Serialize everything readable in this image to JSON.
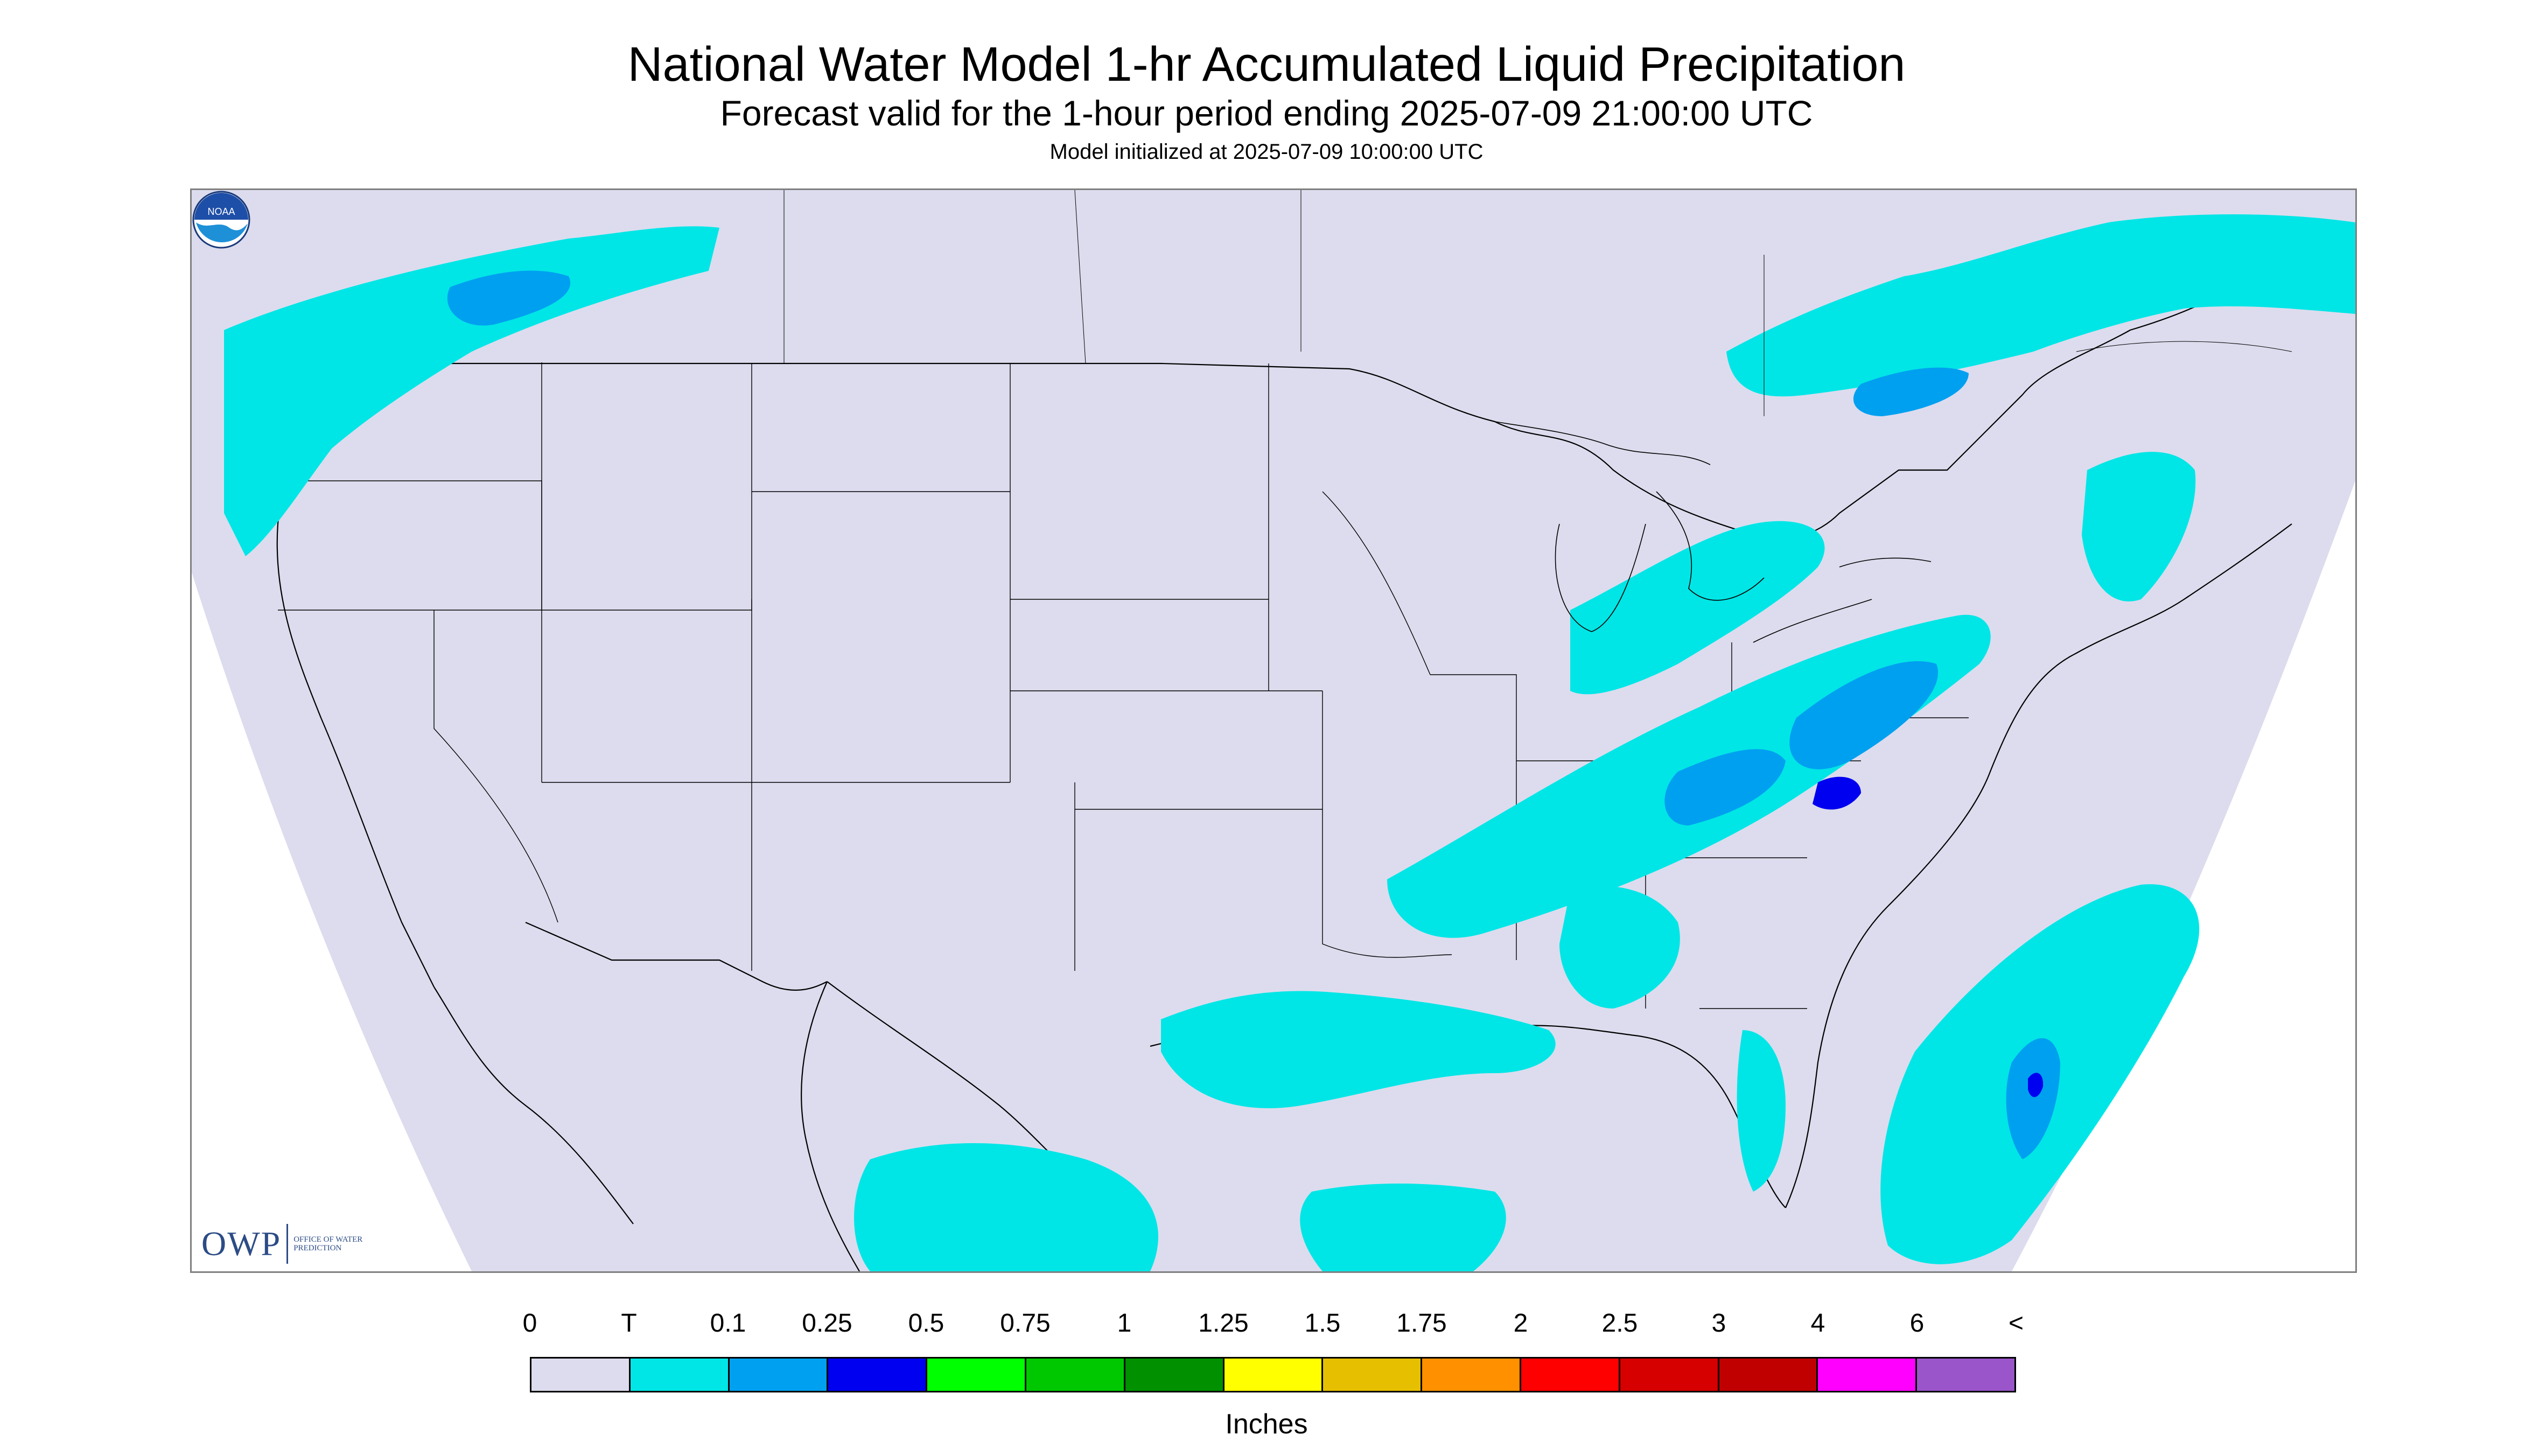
{
  "header": {
    "title": "National Water Model 1-hr Accumulated Liquid Precipitation",
    "subtitle": "Forecast valid for the 1-hour period ending 2025-07-09 21:00:00 UTC",
    "init": "Model initialized at 2025-07-09 10:00:00 UTC"
  },
  "map": {
    "background_color": "#dcdcee",
    "outside_domain_color": "#ffffff",
    "border_color": "#000000",
    "precip_regions": [
      "Pacific Northwest",
      "Ohio Valley",
      "Great Lakes",
      "Southern Canada",
      "Gulf Coast",
      "Atlantic off Florida",
      "Northern Mexico"
    ]
  },
  "logos": {
    "owp_mark": "OWP",
    "owp_text": "Office of Water Prediction",
    "noaa_text": "NOAA"
  },
  "legend": {
    "labels": [
      "0",
      "T",
      "0.1",
      "0.25",
      "0.5",
      "0.75",
      "1",
      "1.25",
      "1.5",
      "1.75",
      "2",
      "2.5",
      "3",
      "4",
      "6",
      "<"
    ],
    "colors": [
      "#dcdcee",
      "#00e6e6",
      "#00a0f0",
      "#0000f0",
      "#00ff00",
      "#00c800",
      "#009000",
      "#ffff00",
      "#e6c000",
      "#ff9000",
      "#ff0000",
      "#d60000",
      "#c00000",
      "#ff00ff",
      "#9955c9"
    ],
    "units": "Inches"
  }
}
